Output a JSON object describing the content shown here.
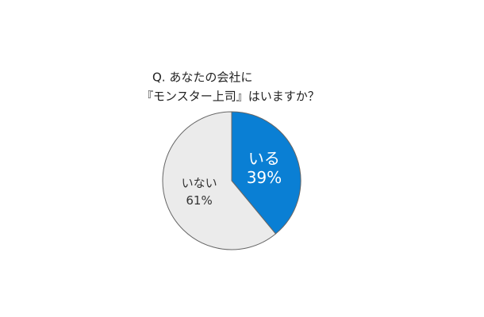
{
  "chart_data": {
    "type": "pie",
    "title": [
      "Q. あなたの会社に",
      "『モンスター上司』はいますか？"
    ],
    "categories": [
      "いる",
      "いない"
    ],
    "values": [
      39,
      61
    ],
    "value_labels": [
      "39%",
      "61%"
    ],
    "colors": [
      "#0a7fd4",
      "#ebebeb"
    ]
  }
}
